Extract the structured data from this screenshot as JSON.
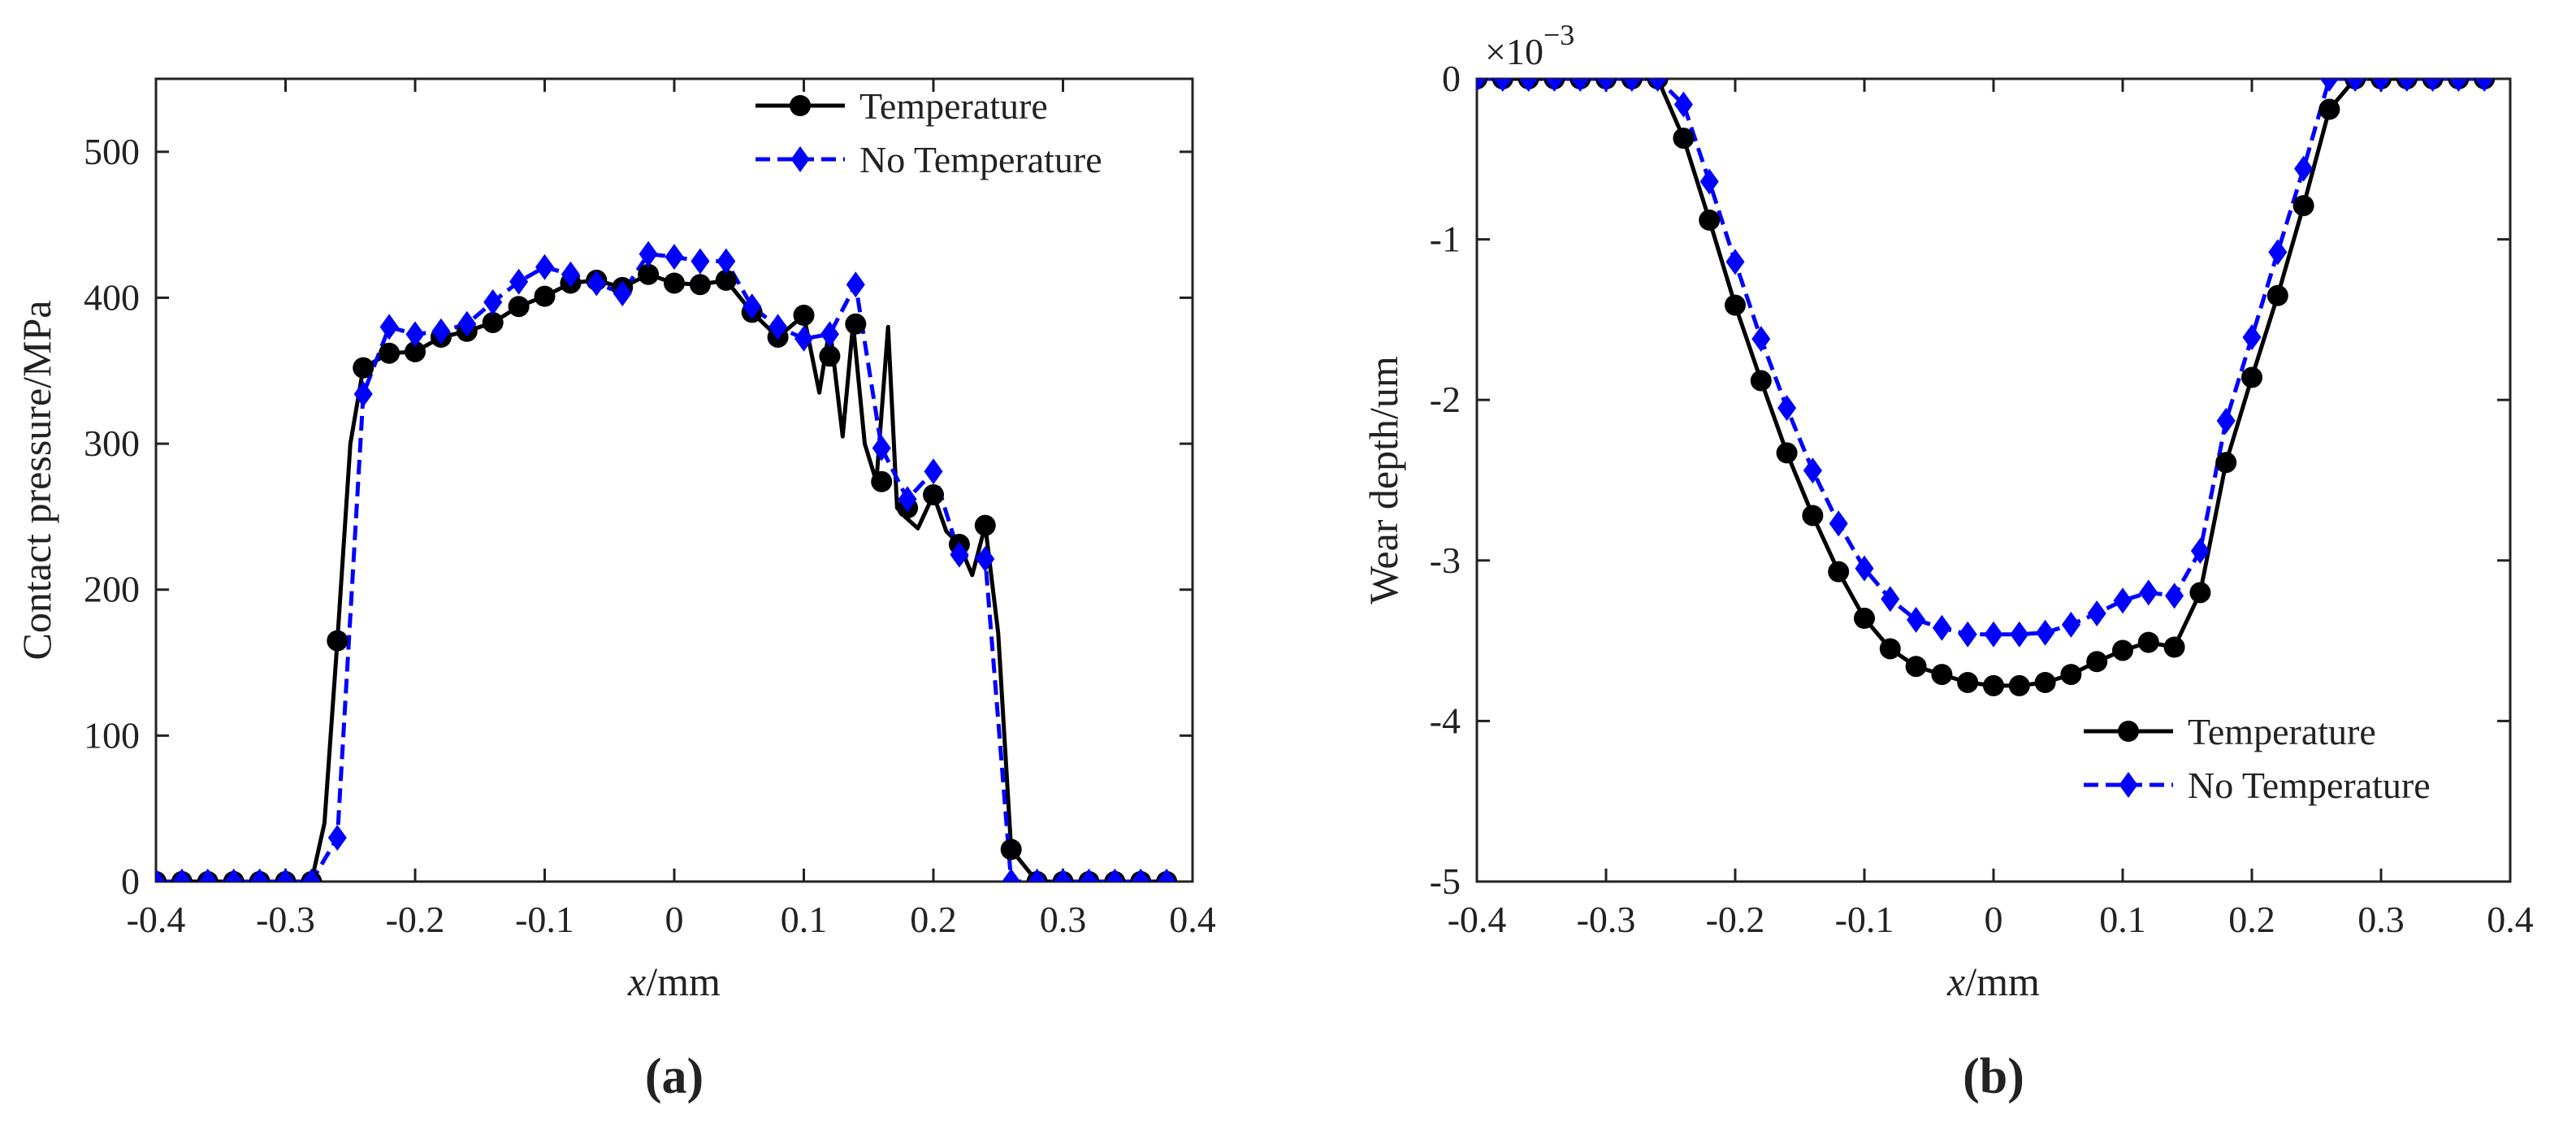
{
  "chart_data": [
    {
      "type": "line",
      "panel_label": "(a)",
      "xlabel_var": "x",
      "xlabel_unit": "/mm",
      "ylabel": "Contact pressure/MPa",
      "xlim": [
        -0.4,
        0.4
      ],
      "ylim": [
        0,
        550
      ],
      "xticks": [
        -0.4,
        -0.3,
        -0.2,
        -0.1,
        0,
        0.1,
        0.2,
        0.3,
        0.4
      ],
      "xtick_labels": [
        "-0.4",
        "-0.3",
        "-0.2",
        "-0.1",
        "0",
        "0.1",
        "0.2",
        "0.3",
        "0.4"
      ],
      "yticks": [
        0,
        100,
        200,
        300,
        400,
        500
      ],
      "ytick_labels": [
        "0",
        "100",
        "200",
        "300",
        "400",
        "500"
      ],
      "legend_position": "top-right",
      "series": [
        {
          "name": "Temperature",
          "color": "#000000",
          "line_style": "solid",
          "marker": "circle",
          "x": [
            -0.4,
            -0.38,
            -0.36,
            -0.34,
            -0.32,
            -0.3,
            -0.28,
            -0.26,
            -0.24,
            -0.22,
            -0.2,
            -0.18,
            -0.16,
            -0.14,
            -0.12,
            -0.1,
            -0.08,
            -0.06,
            -0.04,
            -0.02,
            0,
            0.02,
            0.04,
            0.06,
            0.08,
            0.1,
            0.12,
            0.14,
            0.16,
            0.18,
            0.2,
            0.22,
            0.24,
            0.26,
            0.28,
            0.3,
            0.32,
            0.34,
            0.36,
            0.38
          ],
          "y": [
            0,
            0,
            0,
            0,
            0,
            0,
            0,
            165,
            352,
            362,
            363,
            373,
            377,
            383,
            394,
            401,
            410,
            412,
            407,
            416,
            410,
            409,
            412,
            390,
            373,
            388,
            360,
            382,
            274,
            256,
            265,
            231,
            244,
            22,
            0,
            0,
            0,
            0,
            0,
            0
          ],
          "line_x": [
            -0.4,
            -0.38,
            -0.36,
            -0.34,
            -0.32,
            -0.3,
            -0.28,
            -0.27,
            -0.26,
            -0.25,
            -0.24,
            -0.22,
            -0.2,
            -0.18,
            -0.16,
            -0.14,
            -0.12,
            -0.1,
            -0.08,
            -0.06,
            -0.04,
            -0.02,
            0,
            0.02,
            0.04,
            0.06,
            0.08,
            0.1,
            0.112,
            0.12,
            0.13,
            0.138,
            0.147,
            0.156,
            0.165,
            0.172,
            0.178,
            0.188,
            0.2,
            0.21,
            0.22,
            0.23,
            0.24,
            0.25,
            0.26,
            0.28,
            0.3,
            0.32,
            0.34,
            0.36,
            0.38
          ],
          "line_y": [
            0,
            0,
            0,
            0,
            0,
            0,
            0,
            40,
            165,
            300,
            352,
            362,
            363,
            373,
            377,
            383,
            394,
            401,
            410,
            412,
            407,
            416,
            410,
            409,
            412,
            390,
            373,
            388,
            335,
            380,
            305,
            382,
            300,
            274,
            380,
            256,
            250,
            242,
            265,
            240,
            231,
            210,
            244,
            170,
            22,
            0,
            0,
            0,
            0,
            0,
            0
          ]
        },
        {
          "name": "No Temperature",
          "color": "#0000ff",
          "line_style": "dashed",
          "marker": "diamond",
          "x": [
            -0.4,
            -0.38,
            -0.36,
            -0.34,
            -0.32,
            -0.3,
            -0.28,
            -0.26,
            -0.24,
            -0.22,
            -0.2,
            -0.18,
            -0.16,
            -0.14,
            -0.12,
            -0.1,
            -0.08,
            -0.06,
            -0.04,
            -0.02,
            0,
            0.02,
            0.04,
            0.06,
            0.08,
            0.1,
            0.12,
            0.14,
            0.16,
            0.18,
            0.2,
            0.22,
            0.24,
            0.26,
            0.28,
            0.3,
            0.32,
            0.34,
            0.36,
            0.38
          ],
          "y": [
            0,
            0,
            0,
            0,
            0,
            0,
            0,
            30,
            334,
            380,
            375,
            377,
            382,
            397,
            411,
            421,
            416,
            410,
            403,
            430,
            428,
            425,
            425,
            394,
            380,
            372,
            375,
            409,
            297,
            262,
            281,
            224,
            221,
            0,
            0,
            0,
            0,
            0,
            0,
            0
          ]
        }
      ]
    },
    {
      "type": "line",
      "panel_label": "(b)",
      "xlabel_var": "x",
      "xlabel_unit": "/mm",
      "ylabel": "Wear depth/um",
      "exponent_base": "×10",
      "exponent_power": "−3",
      "xlim": [
        -0.4,
        0.4
      ],
      "ylim": [
        -5,
        0
      ],
      "xticks": [
        -0.4,
        -0.3,
        -0.2,
        -0.1,
        0,
        0.1,
        0.2,
        0.3,
        0.4
      ],
      "xtick_labels": [
        "-0.4",
        "-0.3",
        "-0.2",
        "-0.1",
        "0",
        "0.1",
        "0.2",
        "0.3",
        "0.4"
      ],
      "yticks": [
        0,
        -1,
        -2,
        -3,
        -4,
        -5
      ],
      "ytick_labels": [
        "0",
        "-1",
        "-2",
        "-3",
        "-4",
        "-5"
      ],
      "legend_position": "bottom-right",
      "series": [
        {
          "name": "Temperature",
          "color": "#000000",
          "line_style": "solid",
          "marker": "circle",
          "x": [
            -0.4,
            -0.38,
            -0.36,
            -0.34,
            -0.32,
            -0.3,
            -0.28,
            -0.26,
            -0.24,
            -0.22,
            -0.2,
            -0.18,
            -0.16,
            -0.14,
            -0.12,
            -0.1,
            -0.08,
            -0.06,
            -0.04,
            -0.02,
            0,
            0.02,
            0.04,
            0.06,
            0.08,
            0.1,
            0.12,
            0.14,
            0.16,
            0.18,
            0.2,
            0.22,
            0.24,
            0.26,
            0.28,
            0.3,
            0.32,
            0.34,
            0.36,
            0.38
          ],
          "y": [
            0,
            0,
            0,
            0,
            0,
            0,
            0,
            0,
            -0.37,
            -0.88,
            -1.41,
            -1.88,
            -2.33,
            -2.72,
            -3.07,
            -3.36,
            -3.55,
            -3.66,
            -3.71,
            -3.76,
            -3.78,
            -3.78,
            -3.76,
            -3.71,
            -3.63,
            -3.56,
            -3.51,
            -3.54,
            -3.2,
            -2.39,
            -1.86,
            -1.35,
            -0.79,
            -0.19,
            0,
            0,
            0,
            0,
            0,
            0
          ]
        },
        {
          "name": "No Temperature",
          "color": "#0000ff",
          "line_style": "dashed",
          "marker": "diamond",
          "x": [
            -0.4,
            -0.38,
            -0.36,
            -0.34,
            -0.32,
            -0.3,
            -0.28,
            -0.26,
            -0.24,
            -0.22,
            -0.2,
            -0.18,
            -0.16,
            -0.14,
            -0.12,
            -0.1,
            -0.08,
            -0.06,
            -0.04,
            -0.02,
            0,
            0.02,
            0.04,
            0.06,
            0.08,
            0.1,
            0.12,
            0.14,
            0.16,
            0.18,
            0.2,
            0.22,
            0.24,
            0.26,
            0.28,
            0.3,
            0.32,
            0.34,
            0.36,
            0.38
          ],
          "y": [
            0,
            0,
            0,
            0,
            0,
            0,
            0,
            0,
            -0.16,
            -0.64,
            -1.14,
            -1.62,
            -2.05,
            -2.44,
            -2.77,
            -3.05,
            -3.24,
            -3.37,
            -3.42,
            -3.46,
            -3.46,
            -3.46,
            -3.45,
            -3.4,
            -3.33,
            -3.25,
            -3.2,
            -3.22,
            -2.94,
            -2.13,
            -1.61,
            -1.08,
            -0.56,
            0,
            0,
            0,
            0,
            0,
            0,
            0
          ]
        }
      ]
    }
  ]
}
